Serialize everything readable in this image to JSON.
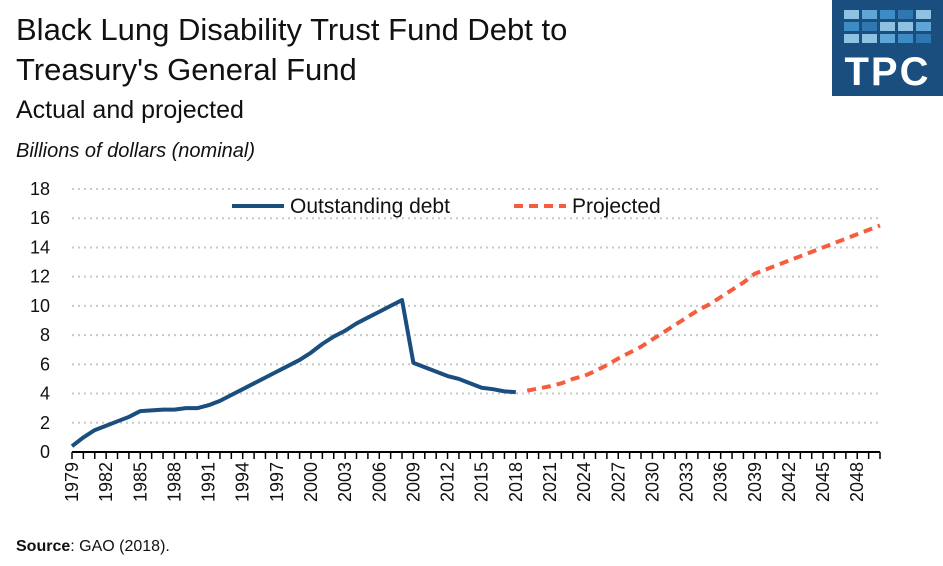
{
  "header": {
    "title_line1": "Black Lung Disability Trust Fund Debt to",
    "title_line2": "Treasury's General Fund",
    "subtitle": "Actual and projected",
    "units": "Billions of dollars (nominal)"
  },
  "logo": {
    "text": "TPC",
    "bg": "#1a4e7e"
  },
  "source": {
    "label": "Source",
    "text": ": GAO (2018)."
  },
  "chart_data": {
    "type": "line",
    "title": "Black Lung Disability Trust Fund Debt to Treasury's General Fund",
    "ylabel": "Billions of dollars (nominal)",
    "xlim": [
      1979,
      2050
    ],
    "ylim": [
      0,
      18
    ],
    "yticks": [
      0,
      2,
      4,
      6,
      8,
      10,
      12,
      14,
      16,
      18
    ],
    "xticks": [
      1979,
      1982,
      1985,
      1988,
      1991,
      1994,
      1997,
      2000,
      2003,
      2006,
      2009,
      2012,
      2015,
      2018,
      2021,
      2024,
      2027,
      2030,
      2033,
      2036,
      2039,
      2042,
      2045,
      2048
    ],
    "grid": true,
    "legend_position": "top-center",
    "series": [
      {
        "name": "Outstanding debt",
        "color": "#1a4e7e",
        "style": "solid",
        "x": [
          1979,
          1980,
          1981,
          1982,
          1983,
          1984,
          1985,
          1986,
          1987,
          1988,
          1989,
          1990,
          1991,
          1992,
          1993,
          1994,
          1995,
          1996,
          1997,
          1998,
          1999,
          2000,
          2001,
          2002,
          2003,
          2004,
          2005,
          2006,
          2007,
          2008,
          2009,
          2010,
          2011,
          2012,
          2013,
          2014,
          2015,
          2016,
          2017,
          2018
        ],
        "y": [
          0.4,
          1.0,
          1.5,
          1.8,
          2.1,
          2.4,
          2.8,
          2.85,
          2.9,
          2.9,
          3.0,
          3.0,
          3.2,
          3.5,
          3.9,
          4.3,
          4.7,
          5.1,
          5.5,
          5.9,
          6.3,
          6.8,
          7.4,
          7.9,
          8.3,
          8.8,
          9.2,
          9.6,
          10.0,
          10.4,
          6.1,
          5.8,
          5.5,
          5.2,
          5.0,
          4.7,
          4.4,
          4.3,
          4.15,
          4.1
        ]
      },
      {
        "name": "Projected",
        "color": "#f55d3e",
        "style": "dashed",
        "x": [
          2019,
          2020,
          2021,
          2022,
          2023,
          2024,
          2025,
          2026,
          2027,
          2028,
          2029,
          2030,
          2031,
          2032,
          2033,
          2034,
          2035,
          2036,
          2037,
          2038,
          2039,
          2040,
          2041,
          2042,
          2043,
          2044,
          2045,
          2046,
          2047,
          2048,
          2049,
          2050
        ],
        "y": [
          4.2,
          4.35,
          4.5,
          4.7,
          5.0,
          5.2,
          5.55,
          5.95,
          6.4,
          6.8,
          7.2,
          7.7,
          8.2,
          8.7,
          9.2,
          9.7,
          10.1,
          10.6,
          11.1,
          11.6,
          12.2,
          12.5,
          12.8,
          13.1,
          13.4,
          13.7,
          14.0,
          14.3,
          14.6,
          14.9,
          15.2,
          15.5
        ]
      }
    ]
  }
}
